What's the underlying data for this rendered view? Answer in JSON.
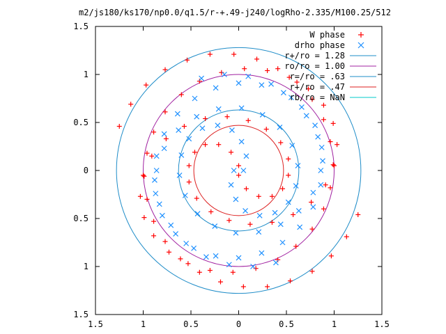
{
  "chart_data": {
    "type": "scatter",
    "title": "m2/js180/ks170/np0.0/q1.5/r-+.49-j240/logRho-2.335/M100.25/512",
    "xlim": [
      -1.5,
      1.5
    ],
    "ylim": [
      -1.5,
      1.5
    ],
    "x_tick_values": [
      -1.5,
      -1,
      -0.5,
      0,
      0.5,
      1,
      1.5
    ],
    "x_tick_labels": [
      "1.5",
      "1",
      "0.5",
      "0",
      "0.5",
      "1",
      "1.5"
    ],
    "y_tick_values": [
      1.5,
      1,
      0.5,
      0,
      -0.5,
      -1,
      -1.5
    ],
    "y_tick_labels": [
      "1.5",
      "1",
      "0.5",
      "0",
      "0.5",
      "1",
      "1.5"
    ],
    "grid": false,
    "legend_position": "top-right",
    "colors": {
      "w_phase": "#ff0000",
      "drho_phase": "#1e90ff",
      "r128": "#1e8cc8",
      "r100": "#a020a0",
      "r63": "#1e8cc8",
      "r47": "#dc1e1e",
      "rnan": "#00c8c8"
    },
    "circles": [
      {
        "label": "r+/ro = 1.28",
        "radius": 1.28,
        "color": "#1e8cc8"
      },
      {
        "label": "ro/ro = 1.00",
        "radius": 1.0,
        "color": "#a020a0"
      },
      {
        "label": "r=/ro = .63",
        "radius": 0.63,
        "color": "#1e8cc8"
      },
      {
        "label": "r+/ro = .47",
        "radius": 0.47,
        "color": "#dc1e1e"
      },
      {
        "label": "rb/ro = NaN",
        "radius": null,
        "color": "#00c8c8"
      }
    ],
    "series": [
      {
        "name": "W phase",
        "marker": "plus",
        "color": "#ff0000",
        "points": [
          [
            0.0,
            0.05
          ],
          [
            -0.08,
            0.19
          ],
          [
            -0.21,
            0.27
          ],
          [
            -0.35,
            0.27
          ],
          [
            -0.46,
            0.19
          ],
          [
            -0.52,
            0.05
          ],
          [
            -0.52,
            -0.12
          ],
          [
            -0.44,
            -0.29
          ],
          [
            -0.29,
            -0.43
          ],
          [
            -0.1,
            -0.52
          ],
          [
            0.12,
            -0.56
          ],
          [
            0.35,
            -0.54
          ],
          [
            0.57,
            -0.46
          ],
          [
            0.76,
            -0.33
          ],
          [
            0.91,
            -0.15
          ],
          [
            1.0,
            0.05
          ],
          [
            1.03,
            0.27
          ],
          [
            0.99,
            0.49
          ],
          [
            0.89,
            0.68
          ],
          [
            0.73,
            0.85
          ],
          [
            0.53,
            0.97
          ],
          [
            0.3,
            1.04
          ],
          [
            0.06,
            1.06
          ],
          [
            -0.18,
            1.02
          ],
          [
            -0.41,
            0.93
          ],
          [
            -0.6,
            0.79
          ],
          [
            -0.77,
            0.61
          ],
          [
            -0.89,
            0.4
          ],
          [
            -0.96,
            0.18
          ],
          [
            -0.99,
            -0.06
          ],
          [
            -0.96,
            -0.3
          ],
          [
            -0.89,
            -0.53
          ],
          [
            -0.77,
            -0.74
          ],
          [
            -0.61,
            -0.92
          ],
          [
            -0.41,
            -1.06
          ],
          [
            -0.19,
            -1.16
          ],
          [
            0.05,
            -1.21
          ],
          [
            0.3,
            -1.21
          ],
          [
            0.54,
            -1.15
          ],
          [
            0.77,
            -1.05
          ],
          [
            0.97,
            -0.89
          ],
          [
            1.13,
            -0.69
          ],
          [
            1.25,
            -0.46
          ],
          [
            0.0,
            -0.05
          ],
          [
            0.08,
            -0.19
          ],
          [
            0.21,
            -0.27
          ],
          [
            0.35,
            -0.27
          ],
          [
            0.46,
            -0.19
          ],
          [
            0.52,
            -0.05
          ],
          [
            0.52,
            0.12
          ],
          [
            0.44,
            0.29
          ],
          [
            0.29,
            0.43
          ],
          [
            0.1,
            0.52
          ],
          [
            -0.12,
            0.56
          ],
          [
            -0.35,
            0.54
          ],
          [
            -0.57,
            0.46
          ],
          [
            -0.76,
            0.33
          ],
          [
            -0.91,
            0.15
          ],
          [
            -1.0,
            -0.05
          ],
          [
            -1.03,
            -0.27
          ],
          [
            -0.99,
            -0.49
          ],
          [
            -0.89,
            -0.68
          ],
          [
            -0.73,
            -0.85
          ],
          [
            -0.53,
            -0.97
          ],
          [
            -0.3,
            -1.04
          ],
          [
            -0.06,
            -1.06
          ],
          [
            0.18,
            -1.02
          ],
          [
            0.41,
            -0.93
          ],
          [
            0.6,
            -0.79
          ],
          [
            0.77,
            -0.61
          ],
          [
            0.89,
            -0.4
          ],
          [
            0.96,
            -0.18
          ],
          [
            0.99,
            0.06
          ],
          [
            0.96,
            0.3
          ],
          [
            0.89,
            0.53
          ],
          [
            0.77,
            0.74
          ],
          [
            0.61,
            0.92
          ],
          [
            0.41,
            1.06
          ],
          [
            0.19,
            1.16
          ],
          [
            -0.05,
            1.21
          ],
          [
            -0.3,
            1.21
          ],
          [
            -0.54,
            1.15
          ],
          [
            -0.77,
            1.05
          ],
          [
            -0.97,
            0.89
          ],
          [
            -1.13,
            0.69
          ],
          [
            -1.25,
            0.46
          ]
        ]
      },
      {
        "name": "drho phase",
        "marker": "cross",
        "color": "#1e90ff",
        "points": [
          [
            0.05,
            0.0
          ],
          [
            0.08,
            0.15
          ],
          [
            0.03,
            0.3
          ],
          [
            -0.07,
            0.42
          ],
          [
            -0.22,
            0.47
          ],
          [
            -0.38,
            0.44
          ],
          [
            -0.52,
            0.33
          ],
          [
            -0.6,
            0.16
          ],
          [
            -0.62,
            -0.05
          ],
          [
            -0.56,
            -0.26
          ],
          [
            -0.43,
            -0.45
          ],
          [
            -0.25,
            -0.58
          ],
          [
            -0.03,
            -0.65
          ],
          [
            0.21,
            -0.64
          ],
          [
            0.44,
            -0.56
          ],
          [
            0.63,
            -0.42
          ],
          [
            0.78,
            -0.23
          ],
          [
            0.86,
            0.0
          ],
          [
            0.87,
            0.24
          ],
          [
            0.8,
            0.47
          ],
          [
            0.66,
            0.66
          ],
          [
            0.47,
            0.81
          ],
          [
            0.24,
            0.89
          ],
          [
            0.0,
            0.91
          ],
          [
            -0.24,
            0.86
          ],
          [
            -0.46,
            0.75
          ],
          [
            -0.64,
            0.59
          ],
          [
            -0.78,
            0.38
          ],
          [
            -0.86,
            0.15
          ],
          [
            -0.88,
            -0.1
          ],
          [
            -0.83,
            -0.35
          ],
          [
            -0.71,
            -0.57
          ],
          [
            -0.55,
            -0.76
          ],
          [
            -0.34,
            -0.9
          ],
          [
            -0.1,
            -0.98
          ],
          [
            0.15,
            -1.0
          ],
          [
            0.39,
            -0.96
          ],
          [
            -0.05,
            0.0
          ],
          [
            -0.08,
            -0.15
          ],
          [
            -0.03,
            -0.3
          ],
          [
            0.07,
            -0.42
          ],
          [
            0.22,
            -0.47
          ],
          [
            0.38,
            -0.44
          ],
          [
            0.52,
            -0.33
          ],
          [
            0.6,
            -0.16
          ],
          [
            0.62,
            0.05
          ],
          [
            0.56,
            0.26
          ],
          [
            0.43,
            0.45
          ],
          [
            0.25,
            0.58
          ],
          [
            0.03,
            0.65
          ],
          [
            -0.21,
            0.64
          ],
          [
            -0.44,
            0.56
          ],
          [
            -0.63,
            0.42
          ],
          [
            -0.78,
            0.23
          ],
          [
            -0.86,
            0.0
          ],
          [
            -0.87,
            -0.24
          ],
          [
            -0.8,
            -0.47
          ],
          [
            -0.66,
            -0.66
          ],
          [
            -0.47,
            -0.81
          ],
          [
            -0.24,
            -0.89
          ],
          [
            0.0,
            -0.91
          ],
          [
            0.24,
            -0.86
          ],
          [
            0.46,
            -0.75
          ],
          [
            0.64,
            -0.59
          ],
          [
            0.78,
            -0.38
          ],
          [
            0.86,
            -0.15
          ],
          [
            0.88,
            0.1
          ],
          [
            0.83,
            0.35
          ],
          [
            0.71,
            0.57
          ],
          [
            0.55,
            0.76
          ],
          [
            0.34,
            0.9
          ],
          [
            0.1,
            0.98
          ],
          [
            -0.15,
            1.0
          ],
          [
            -0.39,
            0.96
          ]
        ]
      }
    ]
  }
}
